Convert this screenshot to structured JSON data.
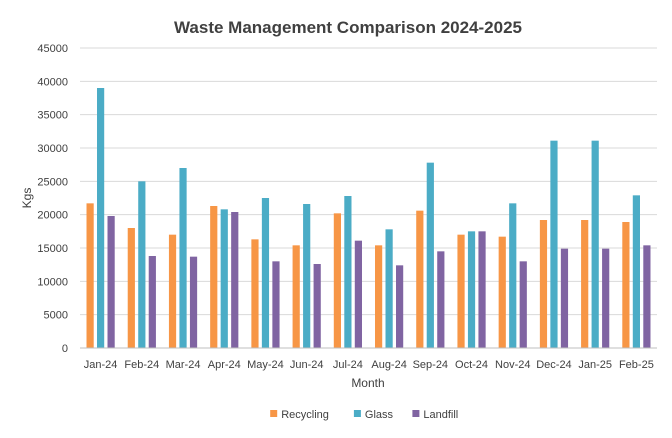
{
  "chart_data": {
    "type": "bar",
    "title": "Waste Management Comparison 2024-2025",
    "xlabel": "Month",
    "ylabel": "Kgs",
    "ylim": [
      0,
      45000
    ],
    "yticks": [
      0,
      5000,
      10000,
      15000,
      20000,
      25000,
      30000,
      35000,
      40000,
      45000
    ],
    "grid": true,
    "legend_position": "bottom",
    "categories": [
      "Jan-24",
      "Feb-24",
      "Mar-24",
      "Apr-24",
      "May-24",
      "Jun-24",
      "Jul-24",
      "Aug-24",
      "Sep-24",
      "Oct-24",
      "Nov-24",
      "Dec-24",
      "Jan-25",
      "Feb-25"
    ],
    "series": [
      {
        "name": "Recycling",
        "color": "#f79646",
        "values": [
          21700,
          18000,
          17000,
          21300,
          16300,
          15400,
          20200,
          15400,
          20600,
          17000,
          16700,
          19200,
          19200,
          18900
        ]
      },
      {
        "name": "Glass",
        "color": "#4bacc6",
        "values": [
          39000,
          25000,
          27000,
          20800,
          22500,
          21600,
          22800,
          17800,
          27800,
          17500,
          21700,
          31100,
          31100,
          22900
        ]
      },
      {
        "name": "Landfill",
        "color": "#8064a2",
        "values": [
          19800,
          13800,
          13700,
          20400,
          13000,
          12600,
          16100,
          12400,
          14500,
          17500,
          13000,
          14900,
          14900,
          15400
        ]
      }
    ]
  }
}
